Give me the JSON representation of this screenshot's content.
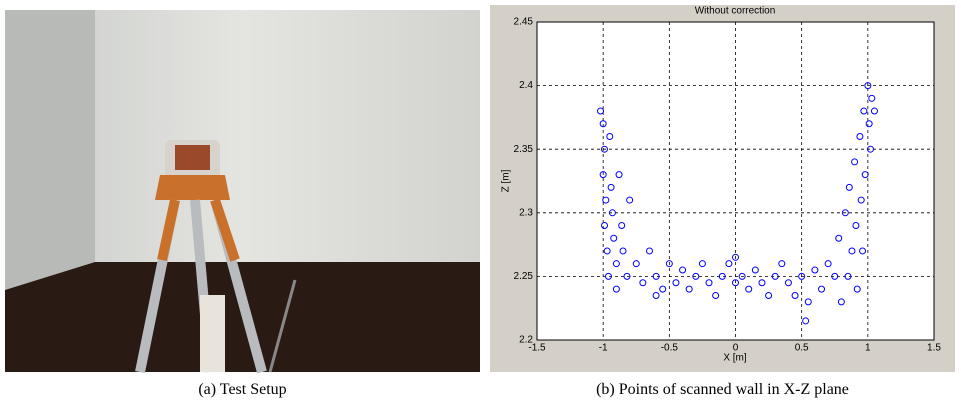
{
  "figure": {
    "captions": [
      "(a) Test Setup",
      "(b) Points of scanned wall in X-Z plane"
    ]
  },
  "chart_data": {
    "type": "scatter",
    "title": "Without correction",
    "x_label": "X [m]",
    "y_label": "Z [m]",
    "xlim": [
      -1.5,
      1.5
    ],
    "ylim": [
      2.2,
      2.45
    ],
    "xticks": [
      -1.5,
      -1,
      -0.5,
      0,
      0.5,
      1,
      1.5
    ],
    "yticks": [
      2.2,
      2.25,
      2.3,
      2.35,
      2.4,
      2.45
    ],
    "grid": true,
    "series": [
      {
        "color": "#0000ff",
        "x": [
          -1.02,
          -1.0,
          -0.99,
          -1.0,
          -0.98,
          -0.99,
          -0.97,
          -0.96,
          -0.95,
          -0.94,
          -0.93,
          -0.92,
          -0.9,
          -0.9,
          -0.88,
          -0.86,
          -0.85,
          -0.82,
          -0.8,
          -0.75,
          -0.7,
          -0.65,
          -0.6,
          -0.55,
          -0.5,
          -0.45,
          -0.4,
          -0.35,
          -0.3,
          -0.25,
          -0.2,
          -0.15,
          -0.1,
          -0.05,
          0,
          0.05,
          0.1,
          0.15,
          0.2,
          0.25,
          0.3,
          0.35,
          0.4,
          0.45,
          0.5,
          0.55,
          0.6,
          0.65,
          0.7,
          0.75,
          0.78,
          0.8,
          0.83,
          0.85,
          0.86,
          0.88,
          0.9,
          0.91,
          0.92,
          0.94,
          0.95,
          0.96,
          0.97,
          0.98,
          1.0,
          1.01,
          1.02,
          1.03,
          1.05,
          0.53,
          -0.6,
          0.0
        ],
        "y": [
          2.38,
          2.37,
          2.35,
          2.33,
          2.31,
          2.29,
          2.27,
          2.25,
          2.36,
          2.32,
          2.3,
          2.28,
          2.26,
          2.24,
          2.33,
          2.29,
          2.27,
          2.25,
          2.31,
          2.26,
          2.245,
          2.27,
          2.25,
          2.24,
          2.26,
          2.245,
          2.255,
          2.24,
          2.25,
          2.26,
          2.245,
          2.235,
          2.25,
          2.26,
          2.245,
          2.25,
          2.24,
          2.255,
          2.245,
          2.235,
          2.25,
          2.26,
          2.245,
          2.235,
          2.25,
          2.23,
          2.255,
          2.24,
          2.26,
          2.25,
          2.28,
          2.23,
          2.3,
          2.25,
          2.32,
          2.27,
          2.34,
          2.29,
          2.24,
          2.36,
          2.31,
          2.27,
          2.38,
          2.33,
          2.4,
          2.37,
          2.35,
          2.39,
          2.38,
          2.215,
          2.235,
          2.265
        ]
      }
    ]
  }
}
